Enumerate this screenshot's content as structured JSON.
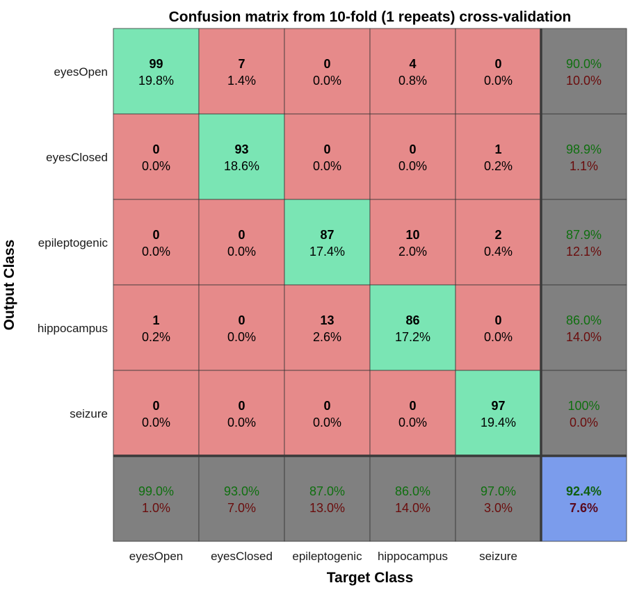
{
  "chart_data": {
    "type": "heatmap",
    "title": "Confusion matrix from 10-fold (1 repeats) cross-validation",
    "xlabel": "Target Class",
    "ylabel": "Output Class",
    "output_classes": [
      "eyesOpen",
      "eyesClosed",
      "epileptogenic",
      "hippocampus",
      "seizure"
    ],
    "target_classes": [
      "eyesOpen",
      "eyesClosed",
      "epileptogenic",
      "hippocampus",
      "seizure"
    ],
    "counts": [
      [
        99,
        7,
        0,
        4,
        0
      ],
      [
        0,
        93,
        0,
        0,
        1
      ],
      [
        0,
        0,
        87,
        10,
        2
      ],
      [
        1,
        0,
        13,
        86,
        0
      ],
      [
        0,
        0,
        0,
        0,
        97
      ]
    ],
    "cell_percents": [
      [
        "19.8%",
        "1.4%",
        "0.0%",
        "0.8%",
        "0.0%"
      ],
      [
        "0.0%",
        "18.6%",
        "0.0%",
        "0.0%",
        "0.2%"
      ],
      [
        "0.0%",
        "0.0%",
        "17.4%",
        "2.0%",
        "0.4%"
      ],
      [
        "0.2%",
        "0.0%",
        "2.6%",
        "17.2%",
        "0.0%"
      ],
      [
        "0.0%",
        "0.0%",
        "0.0%",
        "0.0%",
        "19.4%"
      ]
    ],
    "row_summary": [
      {
        "correct": "90.0%",
        "incorrect": "10.0%"
      },
      {
        "correct": "98.9%",
        "incorrect": "1.1%"
      },
      {
        "correct": "87.9%",
        "incorrect": "12.1%"
      },
      {
        "correct": "86.0%",
        "incorrect": "14.0%"
      },
      {
        "correct": "100%",
        "incorrect": "0.0%"
      }
    ],
    "column_summary": [
      {
        "correct": "99.0%",
        "incorrect": "1.0%"
      },
      {
        "correct": "93.0%",
        "incorrect": "7.0%"
      },
      {
        "correct": "87.0%",
        "incorrect": "13.0%"
      },
      {
        "correct": "86.0%",
        "incorrect": "14.0%"
      },
      {
        "correct": "97.0%",
        "incorrect": "3.0%"
      }
    ],
    "overall": {
      "correct": "92.4%",
      "incorrect": "7.6%"
    },
    "colors": {
      "diagonal": "#7ae5b4",
      "off_diagonal": "#e68a8a",
      "summary": "#808080",
      "overall": "#7b9cec",
      "correct_text": "#0f6f0f",
      "incorrect_text": "#6a0c0c"
    }
  }
}
